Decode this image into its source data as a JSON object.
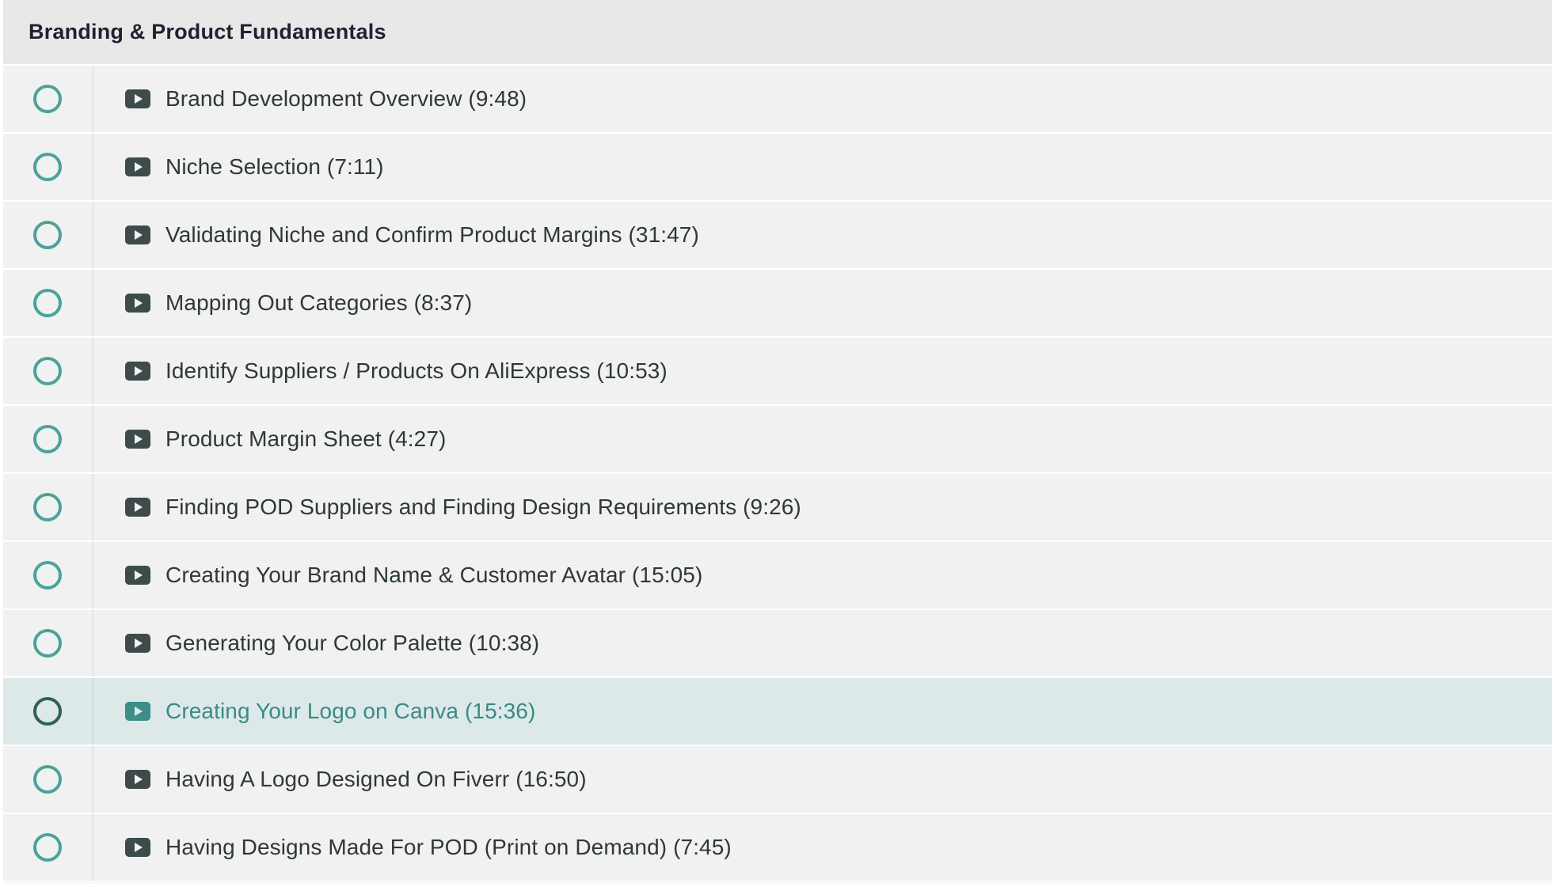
{
  "section": {
    "title": "Branding & Product Fundamentals",
    "lectures": [
      {
        "title": "Brand Development Overview (9:48)",
        "active": false
      },
      {
        "title": "Niche Selection (7:11)",
        "active": false
      },
      {
        "title": "Validating Niche and Confirm Product Margins (31:47)",
        "active": false
      },
      {
        "title": "Mapping Out Categories (8:37)",
        "active": false
      },
      {
        "title": "Identify Suppliers / Products On AliExpress (10:53)",
        "active": false
      },
      {
        "title": "Product Margin Sheet (4:27)",
        "active": false
      },
      {
        "title": "Finding POD Suppliers and Finding Design Requirements (9:26)",
        "active": false
      },
      {
        "title": "Creating Your Brand Name & Customer Avatar (15:05)",
        "active": false
      },
      {
        "title": "Generating Your Color Palette (10:38)",
        "active": false
      },
      {
        "title": "Creating Your Logo on Canva (15:36)",
        "active": true
      },
      {
        "title": "Having A Logo Designed On Fiverr (16:50)",
        "active": false
      },
      {
        "title": "Having Designs Made For POD (Print on Demand) (7:45)",
        "active": false
      }
    ]
  },
  "icons": {
    "status": "incomplete-circle-icon",
    "lecture_type": "video-play-icon"
  },
  "colors": {
    "accent": "#4ea19c",
    "active_row_bg": "#dce9e8",
    "active_text": "#3a8a85",
    "row_bg": "#f1f1f1",
    "header_bg": "#e8e8e8"
  }
}
